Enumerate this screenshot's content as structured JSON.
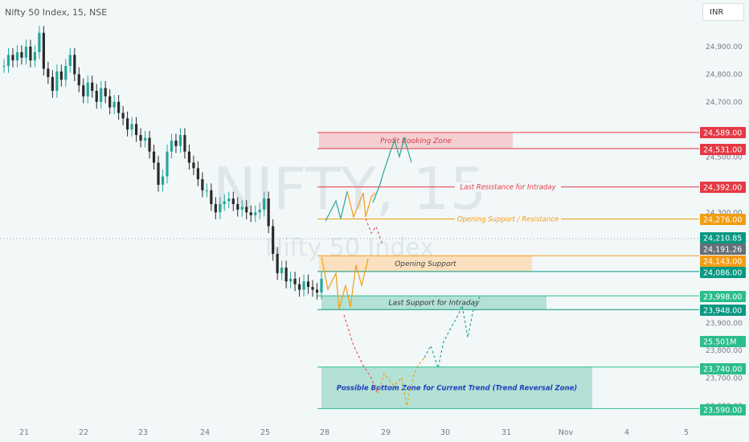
{
  "header": {
    "title": "Nifty 50 Index, 15, NSE"
  },
  "currency": "INR",
  "watermark": {
    "symbol": "NIFTY, 15",
    "name": "Nifty 50 Index"
  },
  "colors": {
    "up": "#26a69a",
    "down": "#ef5350",
    "orange": "#f39c12",
    "red": "#e53945",
    "green_dark": "#089981",
    "green_light": "#2bbd8c",
    "gray_tag": "#666f77"
  },
  "chart_data": {
    "type": "candlestick",
    "ylim": [
      23560,
      25010
    ],
    "price_ticks": [
      24900,
      24800,
      24700,
      24500,
      24300,
      23900,
      23800,
      23700,
      23600
    ],
    "price_tick_labels": [
      "24,900.00",
      "24,800.00",
      "24,700.00",
      "24,500.00",
      "24,300.00",
      "23,900.00",
      "23,800.00",
      "23,700.00",
      "23,600.00"
    ],
    "x_labels": [
      "21",
      "22",
      "23",
      "24",
      "25",
      "28",
      "29",
      "30",
      "31",
      "Nov",
      "4",
      "5"
    ],
    "price_path": [
      [
        24830,
        24870,
        24850,
        24880,
        24860,
        24900,
        24850,
        24880,
        24950,
        24820,
        24790,
        24740,
        24810,
        24780,
        24830,
        24870,
        24800,
        24760,
        24720,
        24770,
        24740,
        24700,
        24750,
        24720,
        24680,
        24700,
        24660,
        24640,
        24600,
        24620,
        24580,
        24560,
        24570,
        24520,
        24480,
        24400,
        24430,
        24520,
        24560,
        24540,
        24580,
        24520,
        24480,
        24460,
        24420,
        24380,
        24380,
        24330,
        24300,
        24330,
        24340,
        24350,
        24330,
        24310,
        24320,
        24300,
        24290,
        24300,
        24310,
        24350,
        24250,
        24150,
        24080,
        24100,
        24050,
        24060,
        24040,
        24020,
        24050,
        24030,
        24020,
        24010,
        24060
      ]
    ],
    "levels": [
      {
        "price": 24589,
        "label": "24,589.00",
        "color": "#e53945"
      },
      {
        "price": 24531,
        "label": "24,531.00",
        "color": "#e53945"
      },
      {
        "price": 24392,
        "label": "24,392.00",
        "color": "#e53945"
      },
      {
        "price": 24276,
        "label": "24,276.00",
        "color": "#f39c12"
      },
      {
        "price": 24210.85,
        "label": "24,210.85",
        "color": "#089981"
      },
      {
        "price": 24191.26,
        "label": "24,191.26",
        "color": "#666f77"
      },
      {
        "price": 24143,
        "label": "24,143.00",
        "color": "#f39c12"
      },
      {
        "price": 24086,
        "label": "24,086.00",
        "color": "#089981"
      },
      {
        "price": 23998,
        "label": "23,998.00",
        "color": "#2bbd8c"
      },
      {
        "price": 23948,
        "label": "23,948.00",
        "color": "#089981"
      },
      {
        "price": 23830,
        "label": "25.501M",
        "color": "#2bbd8c"
      },
      {
        "price": 23740,
        "label": "23,740.00",
        "color": "#2bbd8c"
      },
      {
        "price": 23590,
        "label": "23,590.00",
        "color": "#2bbd8c"
      }
    ],
    "zones": [
      {
        "name": "Profit Booking Zone",
        "top": 24589,
        "bottom": 24531,
        "x1": 397,
        "x2": 638,
        "fill": "#f4c7ca",
        "text": "#d6404c"
      },
      {
        "name": "Opening Support",
        "top": 24143,
        "bottom": 24086,
        "x1": 397,
        "x2": 662,
        "fill": "#fbdcb5",
        "text": "#444"
      },
      {
        "name": "Last Support for Intraday",
        "top": 23998,
        "bottom": 23948,
        "x1": 400,
        "x2": 680,
        "fill": "#a8ddd0",
        "text": "#333"
      },
      {
        "name": "Possible Bottom Zone for Current Trend (Trend Reversal Zone)",
        "top": 23740,
        "bottom": 23590,
        "x1": 400,
        "x2": 737,
        "fill": "#a8ddd0",
        "text": "#1f3fb8"
      }
    ],
    "line_labels": [
      {
        "text": "Last Resistance for Intraday",
        "price": 24392,
        "x": 632,
        "color": "#e53945"
      },
      {
        "text": "Opening Support / Resistance",
        "price": 24276,
        "x": 632,
        "color": "#f39c12"
      }
    ]
  }
}
